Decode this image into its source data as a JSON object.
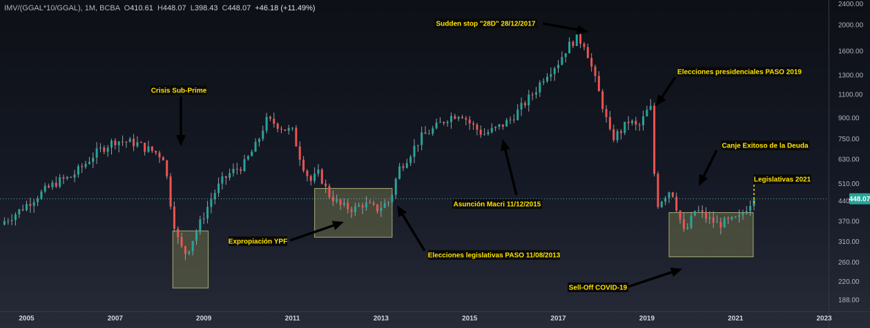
{
  "header": {
    "symbol": "IMV/(GGAL*10/GGAL), 1M, BCBA",
    "open_label": "O",
    "open": "410.61",
    "high_label": "H",
    "high": "448.07",
    "low_label": "L",
    "low": "398.43",
    "close_label": "C",
    "close": "448.07",
    "change": "+46.18 (+11.49%)"
  },
  "colors": {
    "up": "#26a69a",
    "down": "#ef5350",
    "wick": "#9aa0aa",
    "box_fill": "#6b7048",
    "box_stroke": "#a6ab76",
    "annotation_text": "#ffe400",
    "annotation_bg": "#0a0a0a",
    "price_line": "#5bb5b0",
    "price_tag": "#26a69a"
  },
  "chart_data": {
    "type": "candlestick",
    "title": "IMV/(GGAL*10/GGAL), 1M, BCBA",
    "xlabel": "",
    "ylabel": "",
    "y_scale": "log",
    "ylim": [
      170,
      2450
    ],
    "xlim": [
      2004.9,
      2023.6
    ],
    "y_ticks": [
      "188.00",
      "220.00",
      "260.00",
      "310.00",
      "370.00",
      "440.00",
      "510.00",
      "630.00",
      "750.00",
      "900.00",
      "1100.00",
      "1300.00",
      "1600.00",
      "2000.00",
      "2400.00"
    ],
    "x_ticks": [
      "2005",
      "2007",
      "2009",
      "2011",
      "2013",
      "2015",
      "2017",
      "2019",
      "2021",
      "2023"
    ],
    "current_price": "448.07",
    "close_path": [
      [
        2005.0,
        370
      ],
      [
        2005.3,
        400
      ],
      [
        2005.6,
        440
      ],
      [
        2005.9,
        480
      ],
      [
        2006.2,
        520
      ],
      [
        2006.5,
        540
      ],
      [
        2006.8,
        600
      ],
      [
        2007.0,
        650
      ],
      [
        2007.2,
        690
      ],
      [
        2007.5,
        740
      ],
      [
        2007.8,
        730
      ],
      [
        2008.0,
        720
      ],
      [
        2008.2,
        690
      ],
      [
        2008.4,
        670
      ],
      [
        2008.6,
        640
      ],
      [
        2008.8,
        380
      ],
      [
        2008.95,
        300
      ],
      [
        2009.1,
        280
      ],
      [
        2009.3,
        330
      ],
      [
        2009.5,
        390
      ],
      [
        2009.7,
        460
      ],
      [
        2009.9,
        520
      ],
      [
        2010.1,
        560
      ],
      [
        2010.4,
        600
      ],
      [
        2010.7,
        720
      ],
      [
        2010.9,
        880
      ],
      [
        2011.1,
        860
      ],
      [
        2011.3,
        820
      ],
      [
        2011.5,
        800
      ],
      [
        2011.7,
        620
      ],
      [
        2011.9,
        520
      ],
      [
        2012.1,
        560
      ],
      [
        2012.3,
        470
      ],
      [
        2012.6,
        420
      ],
      [
        2012.9,
        410
      ],
      [
        2013.1,
        430
      ],
      [
        2013.4,
        410
      ],
      [
        2013.7,
        440
      ],
      [
        2013.9,
        580
      ],
      [
        2014.1,
        640
      ],
      [
        2014.4,
        760
      ],
      [
        2014.7,
        820
      ],
      [
        2015.0,
        900
      ],
      [
        2015.3,
        940
      ],
      [
        2015.5,
        860
      ],
      [
        2015.8,
        780
      ],
      [
        2016.1,
        820
      ],
      [
        2016.4,
        880
      ],
      [
        2016.7,
        1000
      ],
      [
        2017.0,
        1150
      ],
      [
        2017.2,
        1300
      ],
      [
        2017.5,
        1450
      ],
      [
        2017.7,
        1650
      ],
      [
        2017.9,
        1780
      ],
      [
        2018.1,
        1700
      ],
      [
        2018.3,
        1300
      ],
      [
        2018.5,
        1000
      ],
      [
        2018.7,
        750
      ],
      [
        2018.9,
        800
      ],
      [
        2019.1,
        880
      ],
      [
        2019.3,
        820
      ],
      [
        2019.5,
        950
      ],
      [
        2019.6,
        980
      ],
      [
        2019.7,
        420
      ],
      [
        2019.9,
        460
      ],
      [
        2020.05,
        490
      ],
      [
        2020.2,
        400
      ],
      [
        2020.35,
        330
      ],
      [
        2020.6,
        410
      ],
      [
        2020.85,
        380
      ],
      [
        2021.1,
        360
      ],
      [
        2021.4,
        370
      ],
      [
        2021.6,
        380
      ],
      [
        2021.8,
        430
      ],
      [
        2021.95,
        448
      ]
    ],
    "annotations": [
      {
        "text": "Crisis Sub-Prime"
      },
      {
        "text": "Expropiación YPF"
      },
      {
        "text": "Elecciones legislativas PASO 11/08/2013"
      },
      {
        "text": "Asunción Macri 11/12/2015"
      },
      {
        "text": "Sudden stop \"28D\" 28/12/2017"
      },
      {
        "text": "Elecciones presidenciales PASO 2019"
      },
      {
        "text": "Canje Exitoso de la Deuda"
      },
      {
        "text": "Legislativas 2021"
      },
      {
        "text": "Sell-Off COVID-19"
      }
    ],
    "regions": [
      {
        "x0": 2008.8,
        "x1": 2009.6,
        "y_low": 208,
        "y_high": 340
      },
      {
        "x0": 2012.0,
        "x1": 2013.75,
        "y_low": 322,
        "y_high": 490
      },
      {
        "x0": 2020.0,
        "x1": 2021.9,
        "y_low": 272,
        "y_high": 398
      }
    ]
  }
}
